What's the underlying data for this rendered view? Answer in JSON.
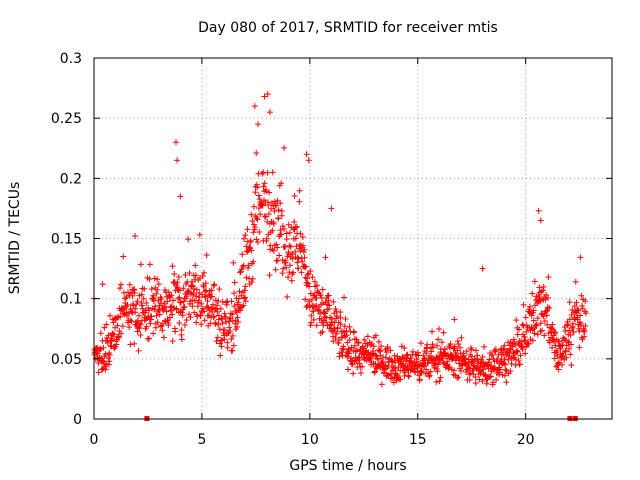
{
  "chart_data": {
    "type": "scatter",
    "title": "Day 080 of 2017, SRMTID for receiver mtis",
    "xlabel": "GPS time / hours",
    "ylabel": "SRMTID / TECUs",
    "xlim": [
      0,
      24
    ],
    "ylim": [
      0,
      0.3
    ],
    "xticks": [
      0,
      5,
      10,
      15,
      20
    ],
    "xtick_labels": [
      "0",
      "5",
      "10",
      "15",
      "20"
    ],
    "yticks": [
      0,
      0.05,
      0.1,
      0.15,
      0.2,
      0.25,
      0.3
    ],
    "ytick_labels": [
      "0",
      "0.05",
      "0.1",
      "0.15",
      "0.2",
      "0.25",
      "0.3"
    ],
    "grid": true,
    "marker": "+",
    "color": "#ff0000",
    "series": [
      {
        "name": "SRMTID",
        "envelope": [
          {
            "x": 0.0,
            "y": 0.05,
            "spread": 0.012
          },
          {
            "x": 0.5,
            "y": 0.055,
            "spread": 0.015
          },
          {
            "x": 1.0,
            "y": 0.075,
            "spread": 0.02
          },
          {
            "x": 1.5,
            "y": 0.095,
            "spread": 0.02
          },
          {
            "x": 2.0,
            "y": 0.085,
            "spread": 0.022
          },
          {
            "x": 2.5,
            "y": 0.09,
            "spread": 0.022
          },
          {
            "x": 3.0,
            "y": 0.095,
            "spread": 0.02
          },
          {
            "x": 3.5,
            "y": 0.09,
            "spread": 0.02
          },
          {
            "x": 4.0,
            "y": 0.095,
            "spread": 0.022
          },
          {
            "x": 4.5,
            "y": 0.11,
            "spread": 0.022
          },
          {
            "x": 5.0,
            "y": 0.1,
            "spread": 0.022
          },
          {
            "x": 5.5,
            "y": 0.095,
            "spread": 0.022
          },
          {
            "x": 6.0,
            "y": 0.075,
            "spread": 0.02
          },
          {
            "x": 6.5,
            "y": 0.085,
            "spread": 0.02
          },
          {
            "x": 7.0,
            "y": 0.12,
            "spread": 0.028
          },
          {
            "x": 7.5,
            "y": 0.165,
            "spread": 0.035
          },
          {
            "x": 8.0,
            "y": 0.185,
            "spread": 0.04
          },
          {
            "x": 8.5,
            "y": 0.16,
            "spread": 0.03
          },
          {
            "x": 9.0,
            "y": 0.14,
            "spread": 0.028
          },
          {
            "x": 9.5,
            "y": 0.145,
            "spread": 0.028
          },
          {
            "x": 10.0,
            "y": 0.1,
            "spread": 0.025
          },
          {
            "x": 10.5,
            "y": 0.09,
            "spread": 0.02
          },
          {
            "x": 11.0,
            "y": 0.085,
            "spread": 0.02
          },
          {
            "x": 11.5,
            "y": 0.065,
            "spread": 0.015
          },
          {
            "x": 12.0,
            "y": 0.055,
            "spread": 0.013
          },
          {
            "x": 13.0,
            "y": 0.05,
            "spread": 0.012
          },
          {
            "x": 14.0,
            "y": 0.045,
            "spread": 0.012
          },
          {
            "x": 15.0,
            "y": 0.045,
            "spread": 0.012
          },
          {
            "x": 16.0,
            "y": 0.05,
            "spread": 0.012
          },
          {
            "x": 17.0,
            "y": 0.05,
            "spread": 0.012
          },
          {
            "x": 18.0,
            "y": 0.04,
            "spread": 0.012
          },
          {
            "x": 19.0,
            "y": 0.05,
            "spread": 0.012
          },
          {
            "x": 19.5,
            "y": 0.055,
            "spread": 0.013
          },
          {
            "x": 20.0,
            "y": 0.065,
            "spread": 0.015
          },
          {
            "x": 20.5,
            "y": 0.095,
            "spread": 0.022
          },
          {
            "x": 21.0,
            "y": 0.09,
            "spread": 0.02
          },
          {
            "x": 21.5,
            "y": 0.05,
            "spread": 0.015
          },
          {
            "x": 22.0,
            "y": 0.07,
            "spread": 0.018
          },
          {
            "x": 22.5,
            "y": 0.085,
            "spread": 0.02
          },
          {
            "x": 22.8,
            "y": 0.085,
            "spread": 0.02
          }
        ],
        "peaks": [
          {
            "x": 3.8,
            "y": 0.23
          },
          {
            "x": 3.85,
            "y": 0.215
          },
          {
            "x": 4.0,
            "y": 0.185
          },
          {
            "x": 7.45,
            "y": 0.26
          },
          {
            "x": 7.9,
            "y": 0.268
          },
          {
            "x": 8.05,
            "y": 0.27
          },
          {
            "x": 8.15,
            "y": 0.255
          },
          {
            "x": 7.6,
            "y": 0.245
          },
          {
            "x": 9.85,
            "y": 0.22
          },
          {
            "x": 9.95,
            "y": 0.215
          },
          {
            "x": 11.0,
            "y": 0.175
          },
          {
            "x": 20.6,
            "y": 0.173
          },
          {
            "x": 20.7,
            "y": 0.165
          },
          {
            "x": 18.0,
            "y": 0.125
          },
          {
            "x": 1.9,
            "y": 0.152
          },
          {
            "x": 0.4,
            "y": 0.112
          }
        ]
      }
    ],
    "gap_markers_x": [
      2.45,
      22.05,
      22.3
    ]
  }
}
